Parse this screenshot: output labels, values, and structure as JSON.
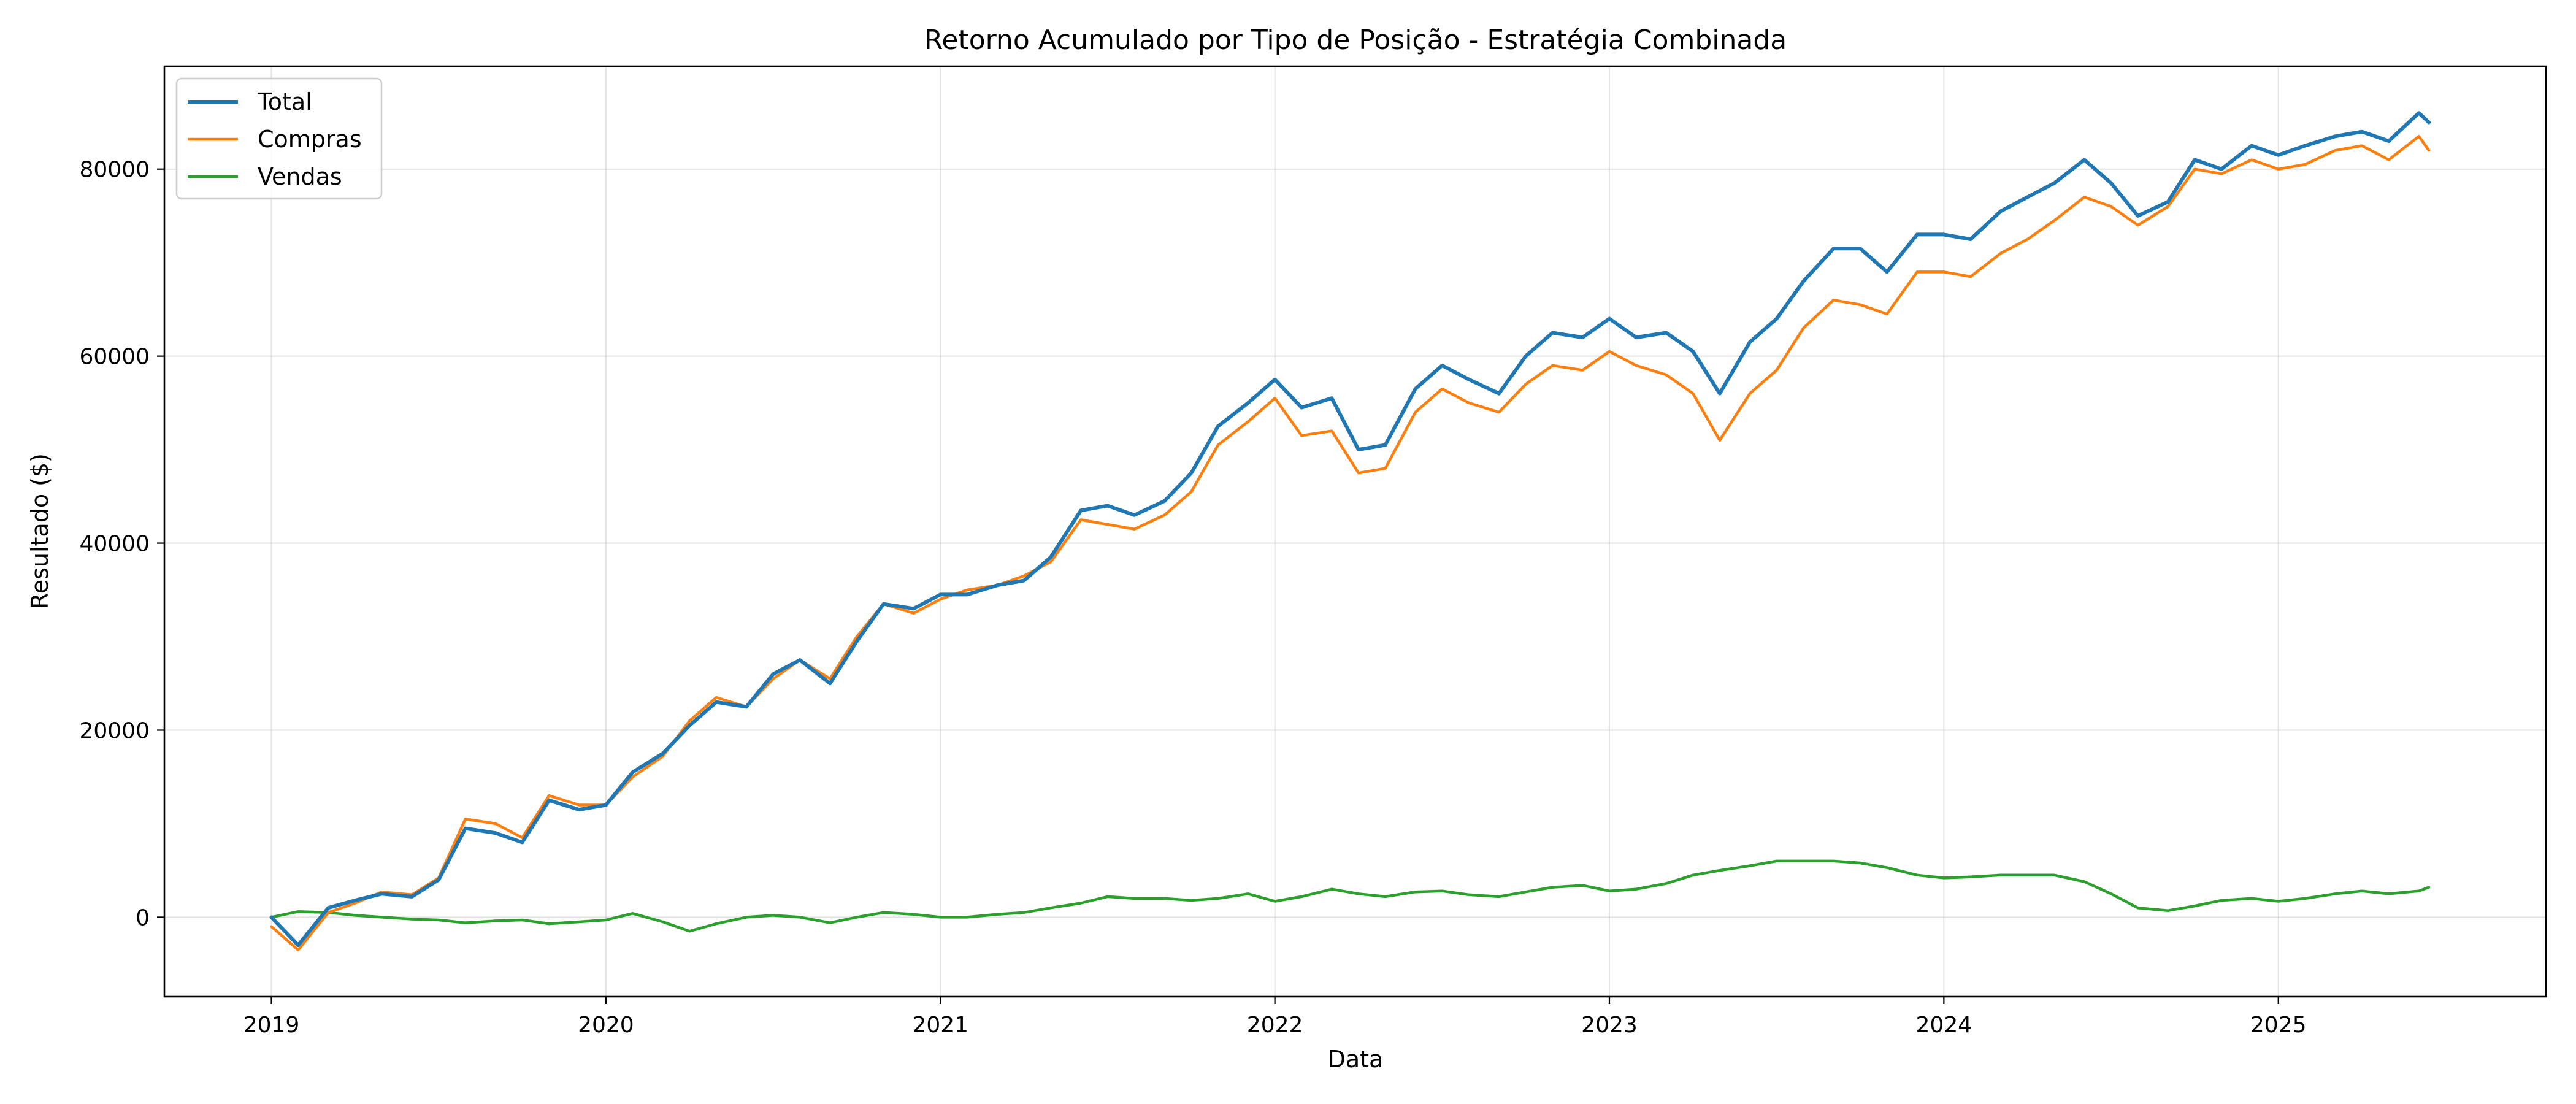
{
  "chart_data": {
    "type": "line",
    "title": "Retorno Acumulado por Tipo de Posição - Estratégia Combinada",
    "xlabel": "Data",
    "ylabel": "Resultado ($)",
    "xlim": [
      2018.68,
      2025.8
    ],
    "ylim": [
      -8500,
      91000
    ],
    "x_ticks": [
      2019,
      2020,
      2021,
      2022,
      2023,
      2024,
      2025
    ],
    "x_tick_labels": [
      "2019",
      "2020",
      "2021",
      "2022",
      "2023",
      "2024",
      "2025"
    ],
    "y_ticks": [
      0,
      20000,
      40000,
      60000,
      80000
    ],
    "y_tick_labels": [
      "0",
      "20000",
      "40000",
      "60000",
      "80000"
    ],
    "grid": true,
    "legend_position": "top-left",
    "x": [
      2019.0,
      2019.08,
      2019.17,
      2019.25,
      2019.33,
      2019.42,
      2019.5,
      2019.58,
      2019.67,
      2019.75,
      2019.83,
      2019.92,
      2020.0,
      2020.08,
      2020.17,
      2020.25,
      2020.33,
      2020.42,
      2020.5,
      2020.58,
      2020.67,
      2020.75,
      2020.83,
      2020.92,
      2021.0,
      2021.08,
      2021.17,
      2021.25,
      2021.33,
      2021.42,
      2021.5,
      2021.58,
      2021.67,
      2021.75,
      2021.83,
      2021.92,
      2022.0,
      2022.08,
      2022.17,
      2022.25,
      2022.33,
      2022.42,
      2022.5,
      2022.58,
      2022.67,
      2022.75,
      2022.83,
      2022.92,
      2023.0,
      2023.08,
      2023.17,
      2023.25,
      2023.33,
      2023.42,
      2023.5,
      2023.58,
      2023.67,
      2023.75,
      2023.83,
      2023.92,
      2024.0,
      2024.08,
      2024.17,
      2024.25,
      2024.33,
      2024.42,
      2024.5,
      2024.58,
      2024.67,
      2024.75,
      2024.83,
      2024.92,
      2025.0,
      2025.08,
      2025.17,
      2025.25,
      2025.33,
      2025.42,
      2025.45
    ],
    "series": [
      {
        "name": "Total",
        "color": "#1f77b4",
        "values": [
          0,
          -3000,
          1000,
          1800,
          2500,
          2200,
          4000,
          9500,
          9000,
          8000,
          12500,
          11500,
          12000,
          15500,
          17500,
          20500,
          23000,
          22500,
          26000,
          27500,
          25000,
          29500,
          33500,
          33000,
          34500,
          34500,
          35500,
          36000,
          38500,
          43500,
          44000,
          43000,
          44500,
          47500,
          52500,
          55000,
          57500,
          54500,
          55500,
          50000,
          50500,
          56500,
          59000,
          57500,
          56000,
          60000,
          62500,
          62000,
          64000,
          62000,
          62500,
          60500,
          56000,
          61500,
          64000,
          68000,
          71500,
          71500,
          69000,
          73000,
          73000,
          72500,
          75500,
          77000,
          78500,
          81000,
          78500,
          75000,
          76500,
          81000,
          80000,
          82500,
          81500,
          82500,
          83500,
          84000,
          83000,
          86000,
          85000
        ]
      },
      {
        "name": "Compras",
        "color": "#ff7f0e",
        "values": [
          -1000,
          -3500,
          500,
          1500,
          2700,
          2400,
          4200,
          10500,
          10000,
          8500,
          13000,
          12000,
          12000,
          15000,
          17200,
          21000,
          23500,
          22500,
          25500,
          27500,
          25500,
          30000,
          33500,
          32500,
          34000,
          35000,
          35500,
          36500,
          38000,
          42500,
          42000,
          41500,
          43000,
          45500,
          50500,
          53000,
          55500,
          51500,
          52000,
          47500,
          48000,
          54000,
          56500,
          55000,
          54000,
          57000,
          59000,
          58500,
          60500,
          59000,
          58000,
          56000,
          51000,
          56000,
          58500,
          63000,
          66000,
          65500,
          64500,
          69000,
          69000,
          68500,
          71000,
          72500,
          74500,
          77000,
          76000,
          74000,
          76000,
          80000,
          79500,
          81000,
          80000,
          80500,
          82000,
          82500,
          81000,
          83500,
          82000
        ]
      },
      {
        "name": "Vendas",
        "color": "#2ca02c",
        "values": [
          0,
          600,
          500,
          200,
          0,
          -200,
          -300,
          -600,
          -400,
          -300,
          -700,
          -500,
          -300,
          400,
          -500,
          -1500,
          -700,
          0,
          200,
          0,
          -600,
          0,
          500,
          300,
          0,
          0,
          300,
          500,
          1000,
          1500,
          2200,
          2000,
          2000,
          1800,
          2000,
          2500,
          1700,
          2200,
          3000,
          2500,
          2200,
          2700,
          2800,
          2400,
          2200,
          2700,
          3200,
          3400,
          2800,
          3000,
          3600,
          4500,
          5000,
          5500,
          6000,
          6000,
          6000,
          5800,
          5300,
          4500,
          4200,
          4300,
          4500,
          4500,
          4500,
          3800,
          2500,
          1000,
          700,
          1200,
          1800,
          2000,
          1700,
          2000,
          2500,
          2800,
          2500,
          2800,
          3200
        ]
      }
    ]
  }
}
